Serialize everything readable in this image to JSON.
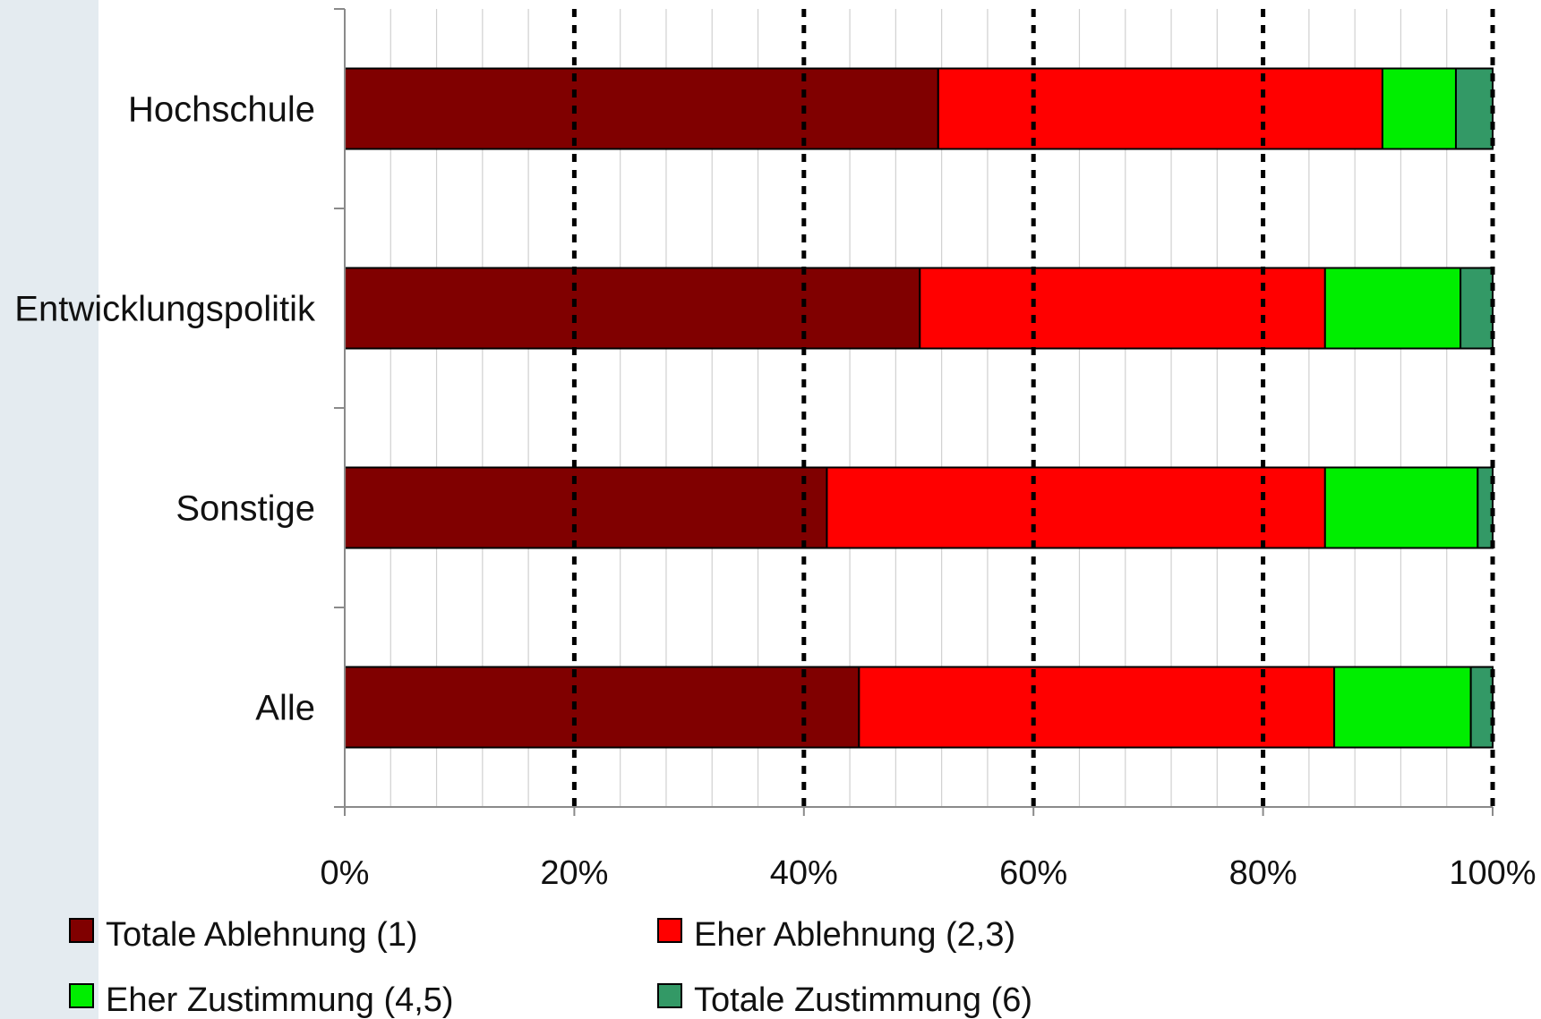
{
  "colors": {
    "panel": "#e4ebf0",
    "grid_minor": "#d0d0d0",
    "grid_major": "#000000",
    "axis": "#8a8a8a"
  },
  "chart_data": {
    "type": "bar",
    "orientation": "horizontal",
    "stacked": "percent",
    "categories": [
      "Hochschule",
      "Entwicklungspolitik",
      "Sonstige",
      "Alle"
    ],
    "series": [
      {
        "name": "Totale Ablehnung (1)",
        "color": "#800000",
        "values": [
          51.7,
          50.1,
          42.0,
          44.8
        ]
      },
      {
        "name": "Eher Ablehnung (2,3)",
        "color": "#ff0000",
        "values": [
          38.7,
          35.3,
          43.4,
          41.4
        ]
      },
      {
        "name": "Eher Zustimmung (4,5)",
        "color": "#00ee00",
        "values": [
          6.4,
          11.8,
          13.3,
          11.9
        ]
      },
      {
        "name": "Totale Zustimmung (6)",
        "color": "#339966",
        "values": [
          3.2,
          2.8,
          1.3,
          1.9
        ]
      }
    ],
    "x_ticks": [
      "0%",
      "20%",
      "40%",
      "60%",
      "80%",
      "100%"
    ],
    "xlim": [
      0,
      100
    ],
    "grid": {
      "minor_step": 4,
      "major_step": 20,
      "major_style": "dotted"
    },
    "legend_position": "bottom"
  }
}
